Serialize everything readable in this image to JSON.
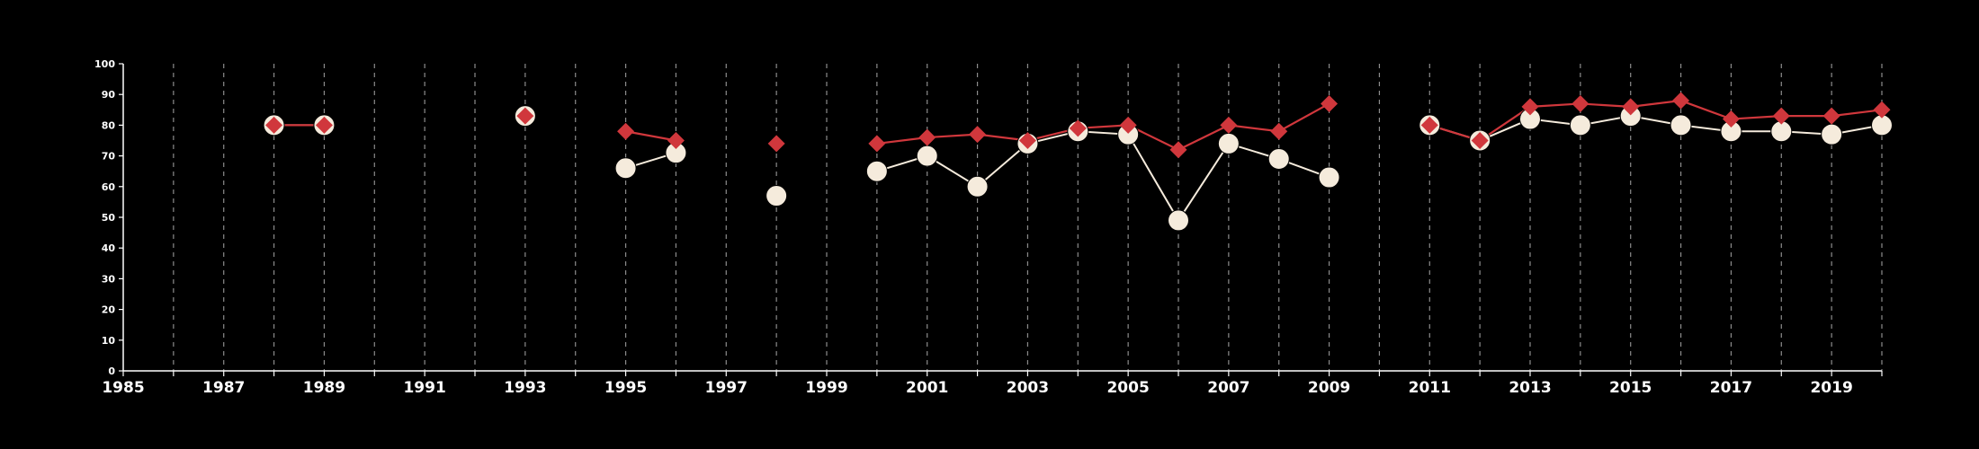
{
  "chart_data": {
    "type": "line",
    "title": "",
    "xlabel": "",
    "ylabel": "",
    "xlim": [
      1985,
      2020
    ],
    "ylim": [
      0,
      100
    ],
    "x_ticks_labeled": [
      1985,
      1987,
      1989,
      1991,
      1993,
      1995,
      1997,
      1999,
      2001,
      2003,
      2005,
      2007,
      2009,
      2011,
      2013,
      2015,
      2017,
      2019
    ],
    "y_ticks": [
      0,
      10,
      20,
      30,
      40,
      50,
      60,
      70,
      80,
      90,
      100
    ],
    "grid": "vertical dashed lines at each year",
    "legend": "none",
    "x": [
      1988,
      1989,
      1993,
      1995,
      1996,
      1998,
      2000,
      2001,
      2002,
      2003,
      2004,
      2005,
      2006,
      2007,
      2008,
      2009,
      2011,
      2012,
      2013,
      2014,
      2015,
      2016,
      2017,
      2018,
      2019,
      2020
    ],
    "series": [
      {
        "marker": "circle",
        "color": "#f5ebdc",
        "values": [
          80,
          80,
          83,
          66,
          71,
          57,
          65,
          70,
          60,
          74,
          78,
          77,
          49,
          74,
          69,
          63,
          80,
          75,
          82,
          80,
          83,
          80,
          78,
          78,
          77,
          80
        ]
      },
      {
        "marker": "diamond",
        "color": "#d0373c",
        "values": [
          80,
          80,
          83,
          78,
          75,
          74,
          74,
          76,
          77,
          75,
          79,
          80,
          72,
          80,
          78,
          87,
          80,
          75,
          86,
          87,
          86,
          88,
          82,
          83,
          83,
          85
        ]
      }
    ]
  },
  "colors": {
    "background": "#000000",
    "axis": "#ffffff",
    "grid": "#8c8c8c"
  }
}
